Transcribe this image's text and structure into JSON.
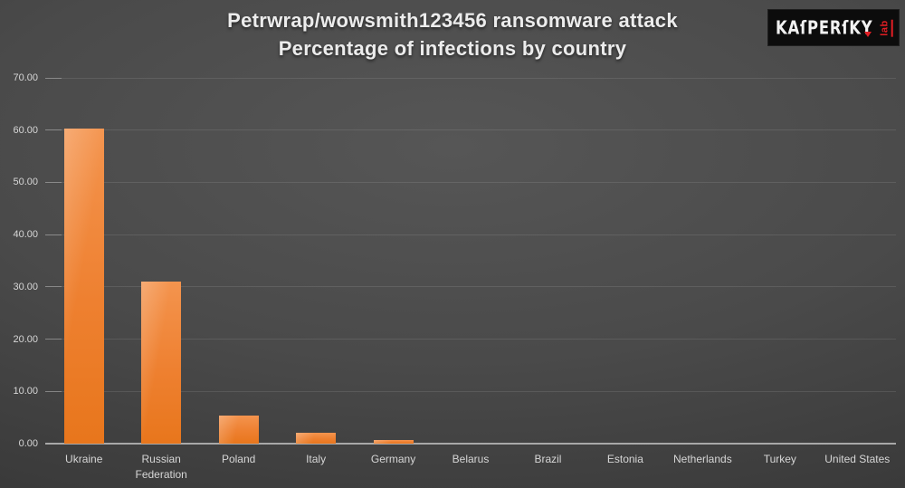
{
  "title": {
    "line1": "Petrwrap/wowsmith123456 ransomware attack",
    "line2": "Percentage of infections by country"
  },
  "logo": {
    "brand": "KAſPERſKY",
    "lab": "lab",
    "brand_color": "#F2F2F2",
    "accent_color": "#E31E24",
    "background": "#0C0C0C"
  },
  "chart_data": {
    "type": "bar",
    "title": "Petrwrap/wowsmith123456 ransomware attack",
    "subtitle": "Percentage of infections by country",
    "categories": [
      "Ukraine",
      "Russian Federation",
      "Poland",
      "Italy",
      "Germany",
      "Belarus",
      "Brazil",
      "Estonia",
      "Netherlands",
      "Turkey",
      "United States"
    ],
    "values": [
      60.3,
      31.0,
      5.3,
      2.1,
      0.7,
      0,
      0,
      0,
      0,
      0,
      0
    ],
    "xlabel": "",
    "ylabel": "",
    "ylim": [
      0,
      70
    ],
    "y_tick_step": 10,
    "y_tick_labels": [
      "0.00",
      "10.00",
      "20.00",
      "30.00",
      "40.00",
      "50.00",
      "60.00",
      "70.00"
    ],
    "grid": true,
    "legend": "none",
    "bar_color": "#ED7D31",
    "bar_gradient_top": "#F4944E",
    "bar_gradient_bottom": "#E8761C",
    "axis_line_color": "#A8A8A8",
    "gridline_color": "#5A5A5A",
    "tick_label_color": "#D6D6D6",
    "background_color": "#4A4A4A",
    "title_color": "#ECECEC"
  }
}
